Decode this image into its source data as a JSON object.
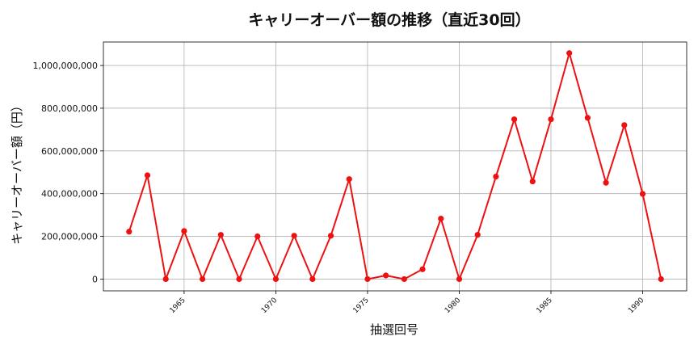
{
  "chart_data": {
    "type": "line",
    "title": "キャリーオーバー額の推移（直近30回）",
    "xlabel": "抽選回号",
    "ylabel": "キャリーオーバー額（円）",
    "xlim": [
      1960.6,
      1992.4
    ],
    "ylim": [
      -55000000,
      1110000000
    ],
    "xticks": [
      1965,
      1970,
      1975,
      1980,
      1985,
      1990
    ],
    "xtick_labels": [
      "1965",
      "1970",
      "1975",
      "1980",
      "1985",
      "1990"
    ],
    "yticks": [
      0,
      200000000,
      400000000,
      600000000,
      800000000,
      1000000000
    ],
    "ytick_labels": [
      "0",
      "200,000,000",
      "400,000,000",
      "600,000,000",
      "800,000,000",
      "1,000,000,000"
    ],
    "grid": true,
    "color": "#ee1111",
    "series": [
      {
        "x": [
          1962,
          1963,
          1964,
          1965,
          1966,
          1967,
          1968,
          1969,
          1970,
          1971,
          1972,
          1973,
          1974,
          1975,
          1976,
          1977,
          1978,
          1979,
          1980,
          1981,
          1982,
          1983,
          1984,
          1985,
          1986,
          1987,
          1988,
          1989,
          1990,
          1991
        ],
        "values": [
          222000000,
          486000000,
          0,
          225000000,
          0,
          207000000,
          0,
          200000000,
          0,
          203000000,
          0,
          203000000,
          468000000,
          0,
          17000000,
          0,
          46000000,
          283000000,
          0,
          207000000,
          480000000,
          748000000,
          457000000,
          748000000,
          1058000000,
          755000000,
          451000000,
          721000000,
          399000000,
          0
        ]
      }
    ]
  }
}
